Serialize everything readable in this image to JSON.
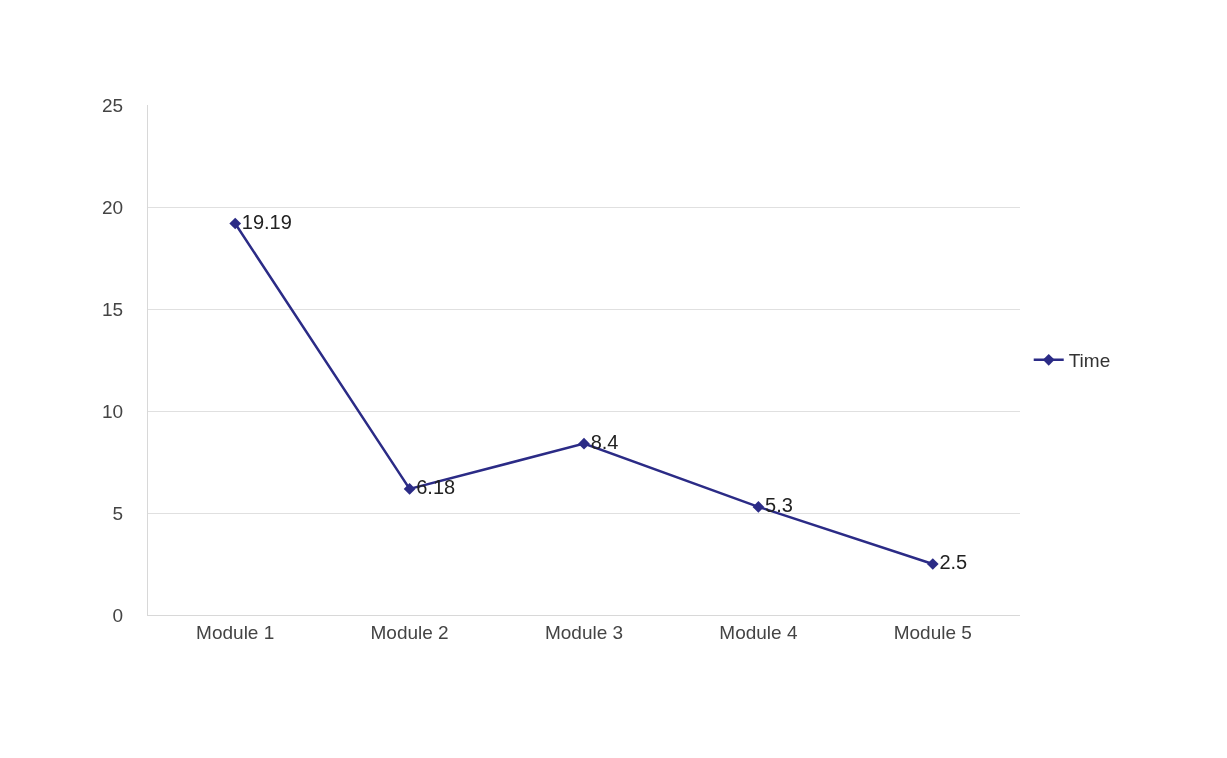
{
  "chart_data": {
    "type": "line",
    "categories": [
      "Module 1",
      "Module 2",
      "Module 3",
      "Module 4",
      "Module 5"
    ],
    "series": [
      {
        "name": "Time",
        "color": "#2b2b86",
        "values": [
          19.19,
          6.18,
          8.4,
          5.3,
          2.5
        ]
      }
    ],
    "ylim": [
      0,
      25
    ],
    "yticks": [
      0,
      5,
      10,
      15,
      20,
      25
    ],
    "grid": "y",
    "legend": "right",
    "marker": "diamond",
    "line_style": "solid",
    "data_labels": true
  }
}
